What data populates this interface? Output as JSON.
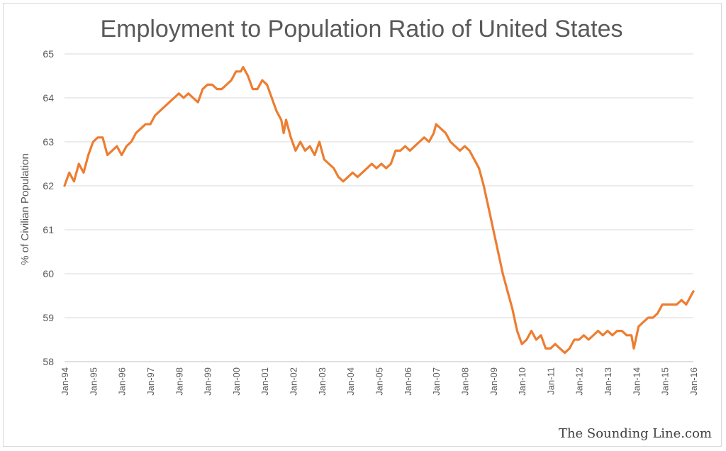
{
  "chart_data": {
    "type": "line",
    "title": "Employment to Population Ratio of United States",
    "xlabel": "",
    "ylabel": "% of Civilian Population",
    "ylim": [
      58,
      65
    ],
    "yticks": [
      "58",
      "59",
      "60",
      "61",
      "62",
      "63",
      "64",
      "65"
    ],
    "xticks": [
      "Jan-94",
      "Jan-95",
      "Jan-96",
      "Jan-97",
      "Jan-98",
      "Jan-99",
      "Jan-00",
      "Jan-01",
      "Jan-02",
      "Jan-03",
      "Jan-04",
      "Jan-05",
      "Jan-06",
      "Jan-07",
      "Jan-08",
      "Jan-09",
      "Jan-10",
      "Jan-11",
      "Jan-12",
      "Jan-13",
      "Jan-14",
      "Jan-15",
      "Jan-16"
    ],
    "grid": "horizontal",
    "legend": "none",
    "series": [
      {
        "color": "#ed7d31",
        "points": [
          [
            "1994-01",
            62.0
          ],
          [
            "1994-03",
            62.3
          ],
          [
            "1994-05",
            62.1
          ],
          [
            "1994-07",
            62.5
          ],
          [
            "1994-09",
            62.3
          ],
          [
            "1994-11",
            62.7
          ],
          [
            "1995-01",
            63.0
          ],
          [
            "1995-03",
            63.1
          ],
          [
            "1995-05",
            63.1
          ],
          [
            "1995-07",
            62.7
          ],
          [
            "1995-09",
            62.8
          ],
          [
            "1995-11",
            62.9
          ],
          [
            "1996-01",
            62.7
          ],
          [
            "1996-03",
            62.9
          ],
          [
            "1996-05",
            63.0
          ],
          [
            "1996-07",
            63.2
          ],
          [
            "1996-09",
            63.3
          ],
          [
            "1996-11",
            63.4
          ],
          [
            "1997-01",
            63.4
          ],
          [
            "1997-03",
            63.6
          ],
          [
            "1997-05",
            63.7
          ],
          [
            "1997-07",
            63.8
          ],
          [
            "1997-09",
            63.9
          ],
          [
            "1997-11",
            64.0
          ],
          [
            "1998-01",
            64.1
          ],
          [
            "1998-03",
            64.0
          ],
          [
            "1998-05",
            64.1
          ],
          [
            "1998-07",
            64.0
          ],
          [
            "1998-09",
            63.9
          ],
          [
            "1998-11",
            64.2
          ],
          [
            "1999-01",
            64.3
          ],
          [
            "1999-03",
            64.3
          ],
          [
            "1999-05",
            64.2
          ],
          [
            "1999-07",
            64.2
          ],
          [
            "1999-09",
            64.3
          ],
          [
            "1999-11",
            64.4
          ],
          [
            "2000-01",
            64.6
          ],
          [
            "2000-03",
            64.6
          ],
          [
            "2000-04",
            64.7
          ],
          [
            "2000-06",
            64.5
          ],
          [
            "2000-08",
            64.2
          ],
          [
            "2000-10",
            64.2
          ],
          [
            "2000-12",
            64.4
          ],
          [
            "2001-02",
            64.3
          ],
          [
            "2001-04",
            64.0
          ],
          [
            "2001-06",
            63.7
          ],
          [
            "2001-08",
            63.5
          ],
          [
            "2001-09",
            63.2
          ],
          [
            "2001-10",
            63.5
          ],
          [
            "2001-12",
            63.1
          ],
          [
            "2002-02",
            62.8
          ],
          [
            "2002-04",
            63.0
          ],
          [
            "2002-06",
            62.8
          ],
          [
            "2002-08",
            62.9
          ],
          [
            "2002-10",
            62.7
          ],
          [
            "2002-12",
            63.0
          ],
          [
            "2003-02",
            62.6
          ],
          [
            "2003-04",
            62.5
          ],
          [
            "2003-06",
            62.4
          ],
          [
            "2003-08",
            62.2
          ],
          [
            "2003-10",
            62.1
          ],
          [
            "2003-12",
            62.2
          ],
          [
            "2004-02",
            62.3
          ],
          [
            "2004-04",
            62.2
          ],
          [
            "2004-06",
            62.3
          ],
          [
            "2004-08",
            62.4
          ],
          [
            "2004-10",
            62.5
          ],
          [
            "2004-12",
            62.4
          ],
          [
            "2005-02",
            62.5
          ],
          [
            "2005-04",
            62.4
          ],
          [
            "2005-06",
            62.5
          ],
          [
            "2005-08",
            62.8
          ],
          [
            "2005-10",
            62.8
          ],
          [
            "2005-12",
            62.9
          ],
          [
            "2006-02",
            62.8
          ],
          [
            "2006-04",
            62.9
          ],
          [
            "2006-06",
            63.0
          ],
          [
            "2006-08",
            63.1
          ],
          [
            "2006-10",
            63.0
          ],
          [
            "2006-12",
            63.2
          ],
          [
            "2007-01",
            63.4
          ],
          [
            "2007-03",
            63.3
          ],
          [
            "2007-05",
            63.2
          ],
          [
            "2007-07",
            63.0
          ],
          [
            "2007-09",
            62.9
          ],
          [
            "2007-11",
            62.8
          ],
          [
            "2008-01",
            62.9
          ],
          [
            "2008-03",
            62.8
          ],
          [
            "2008-05",
            62.6
          ],
          [
            "2008-07",
            62.4
          ],
          [
            "2008-09",
            62.0
          ],
          [
            "2008-11",
            61.5
          ],
          [
            "2009-01",
            61.0
          ],
          [
            "2009-03",
            60.5
          ],
          [
            "2009-05",
            60.0
          ],
          [
            "2009-07",
            59.6
          ],
          [
            "2009-09",
            59.2
          ],
          [
            "2009-11",
            58.7
          ],
          [
            "2010-01",
            58.4
          ],
          [
            "2010-03",
            58.5
          ],
          [
            "2010-05",
            58.7
          ],
          [
            "2010-07",
            58.5
          ],
          [
            "2010-09",
            58.6
          ],
          [
            "2010-11",
            58.3
          ],
          [
            "2011-01",
            58.3
          ],
          [
            "2011-03",
            58.4
          ],
          [
            "2011-05",
            58.3
          ],
          [
            "2011-07",
            58.2
          ],
          [
            "2011-09",
            58.3
          ],
          [
            "2011-11",
            58.5
          ],
          [
            "2012-01",
            58.5
          ],
          [
            "2012-03",
            58.6
          ],
          [
            "2012-05",
            58.5
          ],
          [
            "2012-07",
            58.6
          ],
          [
            "2012-09",
            58.7
          ],
          [
            "2012-11",
            58.6
          ],
          [
            "2013-01",
            58.7
          ],
          [
            "2013-03",
            58.6
          ],
          [
            "2013-05",
            58.7
          ],
          [
            "2013-07",
            58.7
          ],
          [
            "2013-09",
            58.6
          ],
          [
            "2013-11",
            58.6
          ],
          [
            "2013-12",
            58.3
          ],
          [
            "2014-02",
            58.8
          ],
          [
            "2014-04",
            58.9
          ],
          [
            "2014-06",
            59.0
          ],
          [
            "2014-08",
            59.0
          ],
          [
            "2014-10",
            59.1
          ],
          [
            "2014-12",
            59.3
          ],
          [
            "2015-02",
            59.3
          ],
          [
            "2015-04",
            59.3
          ],
          [
            "2015-06",
            59.3
          ],
          [
            "2015-08",
            59.4
          ],
          [
            "2015-10",
            59.3
          ],
          [
            "2015-12",
            59.5
          ],
          [
            "2016-01",
            59.6
          ]
        ]
      }
    ]
  },
  "watermark": "The Sounding Line.com",
  "colors": {
    "line": "#ed7d31",
    "grid": "#d9d9d9",
    "text": "#595959"
  }
}
